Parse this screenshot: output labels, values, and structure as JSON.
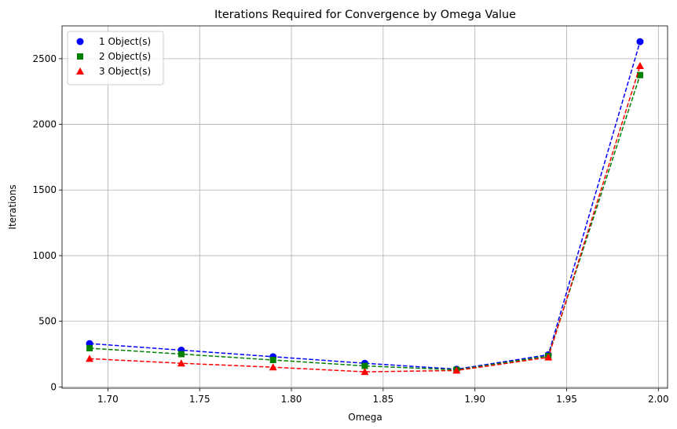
{
  "chart_data": {
    "type": "line",
    "title": "Iterations Required for Convergence by Omega Value",
    "xlabel": "Omega",
    "ylabel": "Iterations",
    "x": [
      1.69,
      1.74,
      1.79,
      1.84,
      1.89,
      1.94,
      1.99
    ],
    "xlim": [
      1.675,
      2.005
    ],
    "ylim": [
      -10,
      2750
    ],
    "xticks": [
      "1.70",
      "1.75",
      "1.80",
      "1.85",
      "1.90",
      "1.95",
      "2.00"
    ],
    "yticks": [
      "0",
      "500",
      "1000",
      "1500",
      "2000",
      "2500"
    ],
    "grid": true,
    "legend_position": "top-left",
    "series": [
      {
        "name": "1 Object(s)",
        "color": "#0000ff",
        "marker": "circle",
        "values": [
          330,
          280,
          230,
          180,
          135,
          245,
          2630
        ]
      },
      {
        "name": "2 Object(s)",
        "color": "#008000",
        "marker": "square",
        "values": [
          295,
          250,
          205,
          160,
          130,
          235,
          2375
        ]
      },
      {
        "name": "3 Object(s)",
        "color": "#ff0000",
        "marker": "triangle",
        "values": [
          215,
          180,
          150,
          115,
          125,
          225,
          2445
        ]
      }
    ]
  }
}
